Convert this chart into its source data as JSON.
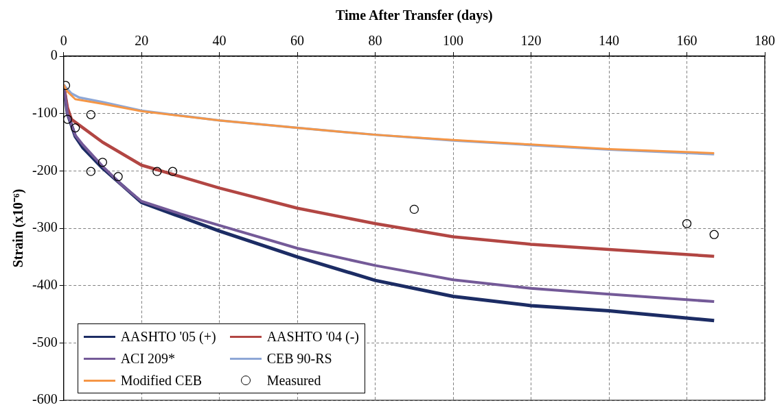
{
  "chart_data": {
    "type": "line",
    "xlabel": "Time After Transfer (days)",
    "ylabel": "Strain (x10⁻⁶)",
    "xlim": [
      0,
      180
    ],
    "xticks": [
      0,
      20,
      40,
      60,
      80,
      100,
      120,
      140,
      160,
      180
    ],
    "ylim": [
      -600,
      0
    ],
    "yticks": [
      -600,
      -500,
      -400,
      -300,
      -200,
      -100,
      0
    ],
    "grid": true,
    "legend": "bottom left",
    "marker": "none",
    "line_style": "solid",
    "series": [
      {
        "name": "AASHTO '05 (+)",
        "color": "#1c2c64",
        "x": [
          0,
          1,
          3,
          5,
          10,
          15,
          20,
          30,
          40,
          60,
          80,
          100,
          120,
          140,
          167
        ],
        "values": [
          -50,
          -100,
          -140,
          -160,
          -195,
          -225,
          -255,
          -280,
          -305,
          -350,
          -391,
          -419,
          -435,
          -444,
          -461
        ]
      },
      {
        "name": "AASHTO '04 (-)",
        "color": "#b24643",
        "x": [
          0,
          1,
          2,
          5,
          10,
          20,
          30,
          40,
          60,
          80,
          100,
          120,
          140,
          167
        ],
        "values": [
          -50,
          -90,
          -110,
          -125,
          -150,
          -190,
          -210,
          -230,
          -265,
          -292,
          -315,
          -328,
          -337,
          -349
        ]
      },
      {
        "name": "ACI 209*",
        "color": "#745a98",
        "x": [
          0,
          1,
          3,
          5,
          10,
          15,
          20,
          30,
          40,
          60,
          80,
          100,
          120,
          140,
          167
        ],
        "values": [
          -50,
          -100,
          -138,
          -155,
          -192,
          -225,
          -253,
          -275,
          -295,
          -335,
          -365,
          -390,
          -405,
          -415,
          -428
        ]
      },
      {
        "name": "CEB 90-RS",
        "color": "#8ea7d6",
        "x": [
          0,
          2,
          4,
          10,
          20,
          40,
          60,
          80,
          100,
          120,
          140,
          167
        ],
        "values": [
          -50,
          -65,
          -72,
          -80,
          -95,
          -112,
          -125,
          -137,
          -147,
          -155,
          -163,
          -171
        ]
      },
      {
        "name": "Modified CEB",
        "color": "#f59646",
        "x": [
          0,
          1,
          3,
          10,
          20,
          40,
          60,
          80,
          100,
          120,
          140,
          167
        ],
        "values": [
          -50,
          -62,
          -75,
          -83,
          -96,
          -112,
          -125,
          -137,
          -146,
          -154,
          -162,
          -169
        ]
      },
      {
        "name": "Measured",
        "type": "scatter",
        "marker": "circle",
        "color": "#000000",
        "x": [
          0.5,
          1,
          3,
          7,
          7,
          10,
          14,
          24,
          28,
          90,
          160,
          167
        ],
        "values": [
          -51,
          -110,
          -125,
          -102,
          -201,
          -185,
          -210,
          -201,
          -201,
          -267,
          -292,
          -311
        ]
      }
    ]
  }
}
